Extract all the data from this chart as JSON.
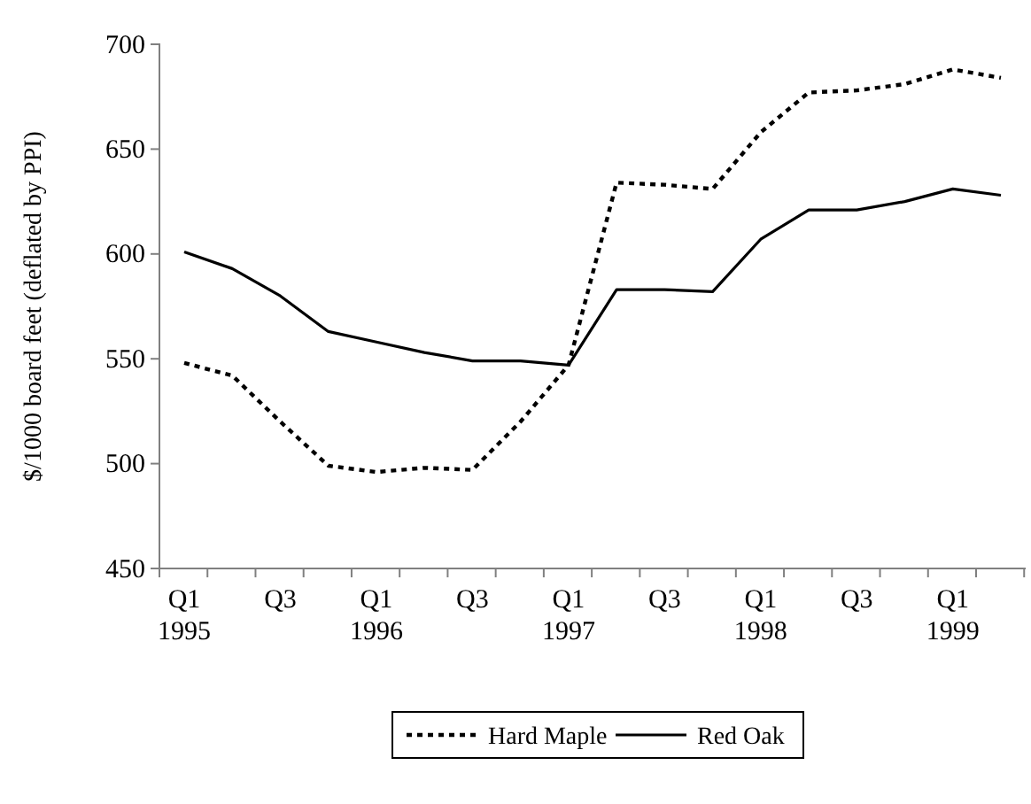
{
  "chart_data": {
    "type": "line",
    "ylabel": "$/1000 board feet (deflated by PPI)",
    "categories": [
      "Q1\n1995",
      null,
      "Q3",
      null,
      "Q1\n1996",
      null,
      "Q3",
      null,
      "Q1\n1997",
      null,
      "Q3",
      null,
      "Q1\n1998",
      null,
      "Q3",
      null,
      "Q1\n1999",
      null
    ],
    "ylim": [
      450,
      700
    ],
    "yticks": [
      450,
      500,
      550,
      600,
      650,
      700
    ],
    "grid": false,
    "legend": "bottom",
    "marker": "none",
    "series": [
      {
        "name": "Hard Maple",
        "color": "#000000",
        "line_style": "dotted",
        "values": [
          548,
          542,
          520,
          499,
          496,
          498,
          497,
          520,
          547,
          634,
          633,
          631,
          658,
          677,
          678,
          681,
          688,
          684
        ]
      },
      {
        "name": "Red Oak",
        "color": "#000000",
        "line_style": "solid",
        "values": [
          601,
          593,
          580,
          563,
          558,
          553,
          549,
          549,
          547,
          583,
          583,
          582,
          607,
          621,
          621,
          625,
          631,
          628
        ]
      }
    ]
  }
}
